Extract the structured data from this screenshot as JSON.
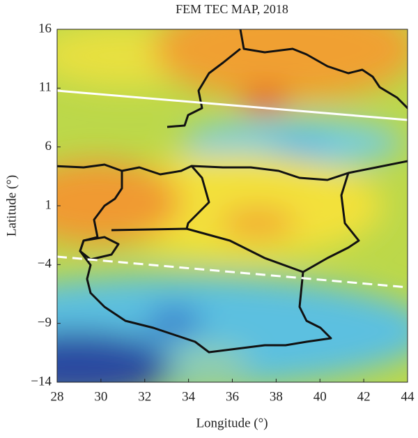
{
  "chart_data": {
    "type": "map",
    "title": "FEM TEC MAP, 2018",
    "x_label": "Longitude (°)",
    "y_label": "Latitude (°)",
    "xlim": [
      28,
      44
    ],
    "ylim": [
      -14,
      16
    ],
    "xticks": [
      28,
      30,
      32,
      34,
      36,
      38,
      40,
      42,
      44
    ],
    "yticks": [
      {
        "value": -14,
        "label": "−14"
      },
      {
        "value": -9,
        "label": "−9"
      },
      {
        "value": -4,
        "label": "−4"
      },
      1,
      6,
      11,
      16
    ]
  }
}
